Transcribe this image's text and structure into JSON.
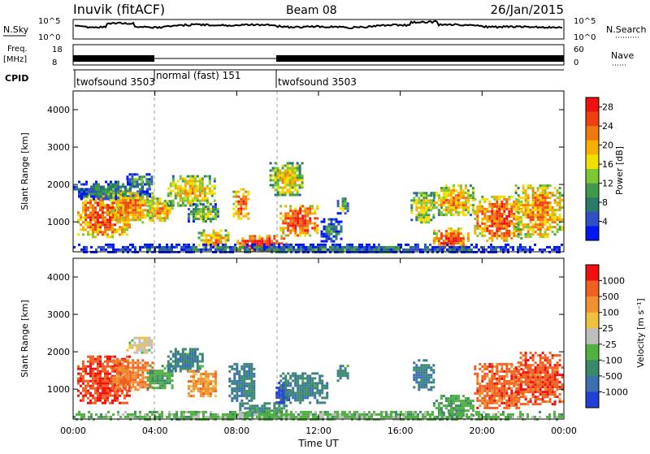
{
  "header": {
    "station": "Inuvik  (fitACF)",
    "beam": "Beam 08",
    "date": "26/Jan/2015"
  },
  "noise_panel": {
    "left_label": "N.Sky",
    "right_label": "N.Search",
    "left_ticks": [
      "10^5",
      "10^0"
    ],
    "right_ticks": [
      "10^5",
      "10^0"
    ]
  },
  "freq_panel": {
    "left_label_1": "Freq.",
    "left_label_2": "[MHz]",
    "right_label": "Nave",
    "left_ticks": [
      "18",
      "8"
    ],
    "right_ticks": [
      "60",
      "0"
    ],
    "cpid_label": "CPID"
  },
  "cpid_segments": [
    {
      "name": "twofsound 3503",
      "start_h": 0,
      "end_h": 4
    },
    {
      "name": "normal (fast) 151",
      "start_h": 4,
      "end_h": 10
    },
    {
      "name": "twofsound 3503",
      "start_h": 10,
      "end_h": 24
    }
  ],
  "time_axis": {
    "xlabel": "Time UT",
    "ticks": [
      "00:00",
      "04:00",
      "08:00",
      "12:00",
      "16:00",
      "20:00",
      "00:00"
    ],
    "tick_hours": [
      0,
      4,
      8,
      12,
      16,
      20,
      24
    ]
  },
  "power_panel": {
    "ylabel": "Slant Range [km]",
    "yticks": [
      "1000",
      "2000",
      "3000",
      "4000"
    ],
    "colorbar_label": "Power [dB]",
    "colorbar_ticks": [
      "4",
      "8",
      "12",
      "16",
      "20",
      "24",
      "28"
    ],
    "colors": [
      "#0018f0",
      "#3050c8",
      "#2a7a6a",
      "#3f9a4a",
      "#7cc832",
      "#f0e000",
      "#f5b000",
      "#f07810",
      "#f04010",
      "#f01010"
    ]
  },
  "velocity_panel": {
    "ylabel": "Slant Range [km]",
    "yticks": [
      "1000",
      "2000",
      "3000",
      "4000"
    ],
    "colorbar_label": "Velocity [m s⁻¹]",
    "colorbar_ticks": [
      "1000",
      "500",
      "100",
      "25",
      "-25",
      "-100",
      "-500",
      "-1000"
    ],
    "colors": [
      "#2040d8",
      "#3a6fb0",
      "#3a8a6a",
      "#50b040",
      "#bebebe",
      "#f0c040",
      "#f09030",
      "#f06020",
      "#f01010"
    ]
  },
  "chart_data": [
    {
      "type": "heatmap",
      "title": "Power",
      "x_unit": "hours UT",
      "y_unit": "km",
      "xlim": [
        0,
        24
      ],
      "ylim": [
        200,
        4500
      ],
      "blobs": [
        {
          "t": [
            0.2,
            2.8
          ],
          "r": [
            600,
            1800
          ],
          "level": 0.85
        },
        {
          "t": [
            0.0,
            3.8
          ],
          "r": [
            1600,
            2100
          ],
          "level": 0.3
        },
        {
          "t": [
            2.6,
            3.9
          ],
          "r": [
            1950,
            2300
          ],
          "level": 0.35
        },
        {
          "t": [
            1.8,
            3.9
          ],
          "r": [
            1000,
            1800
          ],
          "level": 0.75
        },
        {
          "t": [
            3.6,
            4.9
          ],
          "r": [
            1000,
            1650
          ],
          "level": 0.7
        },
        {
          "t": [
            4.6,
            6.9
          ],
          "r": [
            1450,
            2250
          ],
          "level": 0.65
        },
        {
          "t": [
            5.6,
            7.1
          ],
          "r": [
            1000,
            1500
          ],
          "level": 0.5
        },
        {
          "t": [
            6.1,
            7.6
          ],
          "r": [
            300,
            800
          ],
          "level": 0.7
        },
        {
          "t": [
            7.8,
            8.6
          ],
          "r": [
            1100,
            1900
          ],
          "level": 0.85
        },
        {
          "t": [
            8.0,
            10.4
          ],
          "r": [
            200,
            650
          ],
          "level": 0.95
        },
        {
          "t": [
            9.6,
            11.2
          ],
          "r": [
            1700,
            2600
          ],
          "level": 0.6
        },
        {
          "t": [
            10.1,
            12.0
          ],
          "r": [
            650,
            1450
          ],
          "level": 0.9
        },
        {
          "t": [
            12.1,
            13.1
          ],
          "r": [
            500,
            1100
          ],
          "level": 0.3
        },
        {
          "t": [
            12.9,
            13.4
          ],
          "r": [
            1250,
            1650
          ],
          "level": 0.45
        },
        {
          "t": [
            16.5,
            17.6
          ],
          "r": [
            1000,
            1800
          ],
          "level": 0.6
        },
        {
          "t": [
            17.6,
            19.3
          ],
          "r": [
            250,
            850
          ],
          "level": 0.85
        },
        {
          "t": [
            17.6,
            19.6
          ],
          "r": [
            1200,
            2000
          ],
          "level": 0.7
        },
        {
          "t": [
            19.6,
            21.9
          ],
          "r": [
            500,
            1700
          ],
          "level": 0.85
        },
        {
          "t": [
            21.6,
            23.9
          ],
          "r": [
            600,
            2000
          ],
          "level": 0.75
        },
        {
          "t": [
            0.0,
            23.9
          ],
          "r": [
            200,
            420
          ],
          "level": 0.25
        }
      ]
    },
    {
      "type": "heatmap",
      "title": "Velocity",
      "x_unit": "hours UT",
      "y_unit": "km",
      "xlim": [
        0,
        24
      ],
      "ylim": [
        200,
        4500
      ],
      "blobs": [
        {
          "t": [
            0.2,
            2.8
          ],
          "r": [
            600,
            1900
          ],
          "level": -0.75
        },
        {
          "t": [
            2.6,
            3.9
          ],
          "r": [
            1950,
            2400
          ],
          "level": -0.05
        },
        {
          "t": [
            1.8,
            3.9
          ],
          "r": [
            1000,
            1800
          ],
          "level": -0.55
        },
        {
          "t": [
            3.6,
            4.9
          ],
          "r": [
            1000,
            1650
          ],
          "level": 0.3
        },
        {
          "t": [
            4.6,
            6.3
          ],
          "r": [
            1450,
            2100
          ],
          "level": 0.5
        },
        {
          "t": [
            5.6,
            7.0
          ],
          "r": [
            800,
            1500
          ],
          "level": -0.45
        },
        {
          "t": [
            7.6,
            8.9
          ],
          "r": [
            700,
            1700
          ],
          "level": 0.55
        },
        {
          "t": [
            8.0,
            10.4
          ],
          "r": [
            200,
            650
          ],
          "level": 0.45
        },
        {
          "t": [
            9.9,
            10.5
          ],
          "r": [
            650,
            1200
          ],
          "level": 0.95
        },
        {
          "t": [
            10.1,
            12.4
          ],
          "r": [
            650,
            1450
          ],
          "level": 0.5
        },
        {
          "t": [
            12.9,
            13.4
          ],
          "r": [
            1250,
            1650
          ],
          "level": 0.5
        },
        {
          "t": [
            16.5,
            17.6
          ],
          "r": [
            1000,
            1800
          ],
          "level": 0.55
        },
        {
          "t": [
            17.6,
            19.6
          ],
          "r": [
            250,
            850
          ],
          "level": 0.3
        },
        {
          "t": [
            19.6,
            21.9
          ],
          "r": [
            500,
            1700
          ],
          "level": -0.65
        },
        {
          "t": [
            21.6,
            23.9
          ],
          "r": [
            600,
            2000
          ],
          "level": -0.7
        },
        {
          "t": [
            0.0,
            23.9
          ],
          "r": [
            200,
            420
          ],
          "level": 0.2
        }
      ]
    }
  ]
}
